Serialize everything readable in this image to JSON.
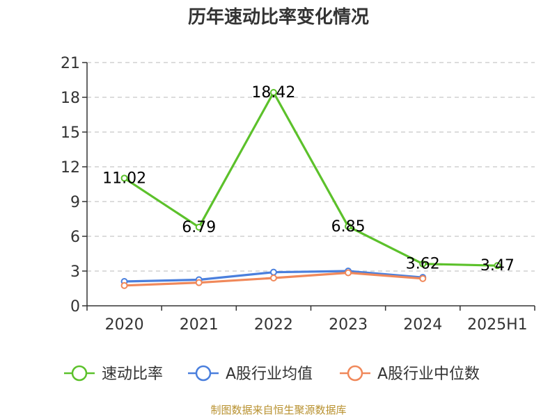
{
  "chart_data": {
    "type": "line",
    "title": "历年速动比率变化情况",
    "categories": [
      "2020",
      "2021",
      "2022",
      "2023",
      "2024",
      "2025H1"
    ],
    "ylim": [
      0,
      21
    ],
    "yticks": [
      "0",
      "3",
      "6",
      "9",
      "12",
      "15",
      "18",
      "21"
    ],
    "grid": true,
    "legend_position": "bottom",
    "series": [
      {
        "name": "速动比率",
        "color": "#5cc12b",
        "values": [
          11.02,
          6.79,
          18.42,
          6.85,
          3.62,
          3.47
        ],
        "labels": [
          "11.02",
          "6.79",
          "18.42",
          "6.85",
          "3.62",
          "3.47"
        ]
      },
      {
        "name": "A股行业均值",
        "color": "#4a7fdd",
        "values": [
          2.1,
          2.25,
          2.9,
          3.0,
          2.45,
          null
        ]
      },
      {
        "name": "A股行业中位数",
        "color": "#f0885a",
        "values": [
          1.75,
          2.0,
          2.4,
          2.85,
          2.35,
          null
        ]
      }
    ]
  },
  "source": "制图数据来自恒生聚源数据库"
}
